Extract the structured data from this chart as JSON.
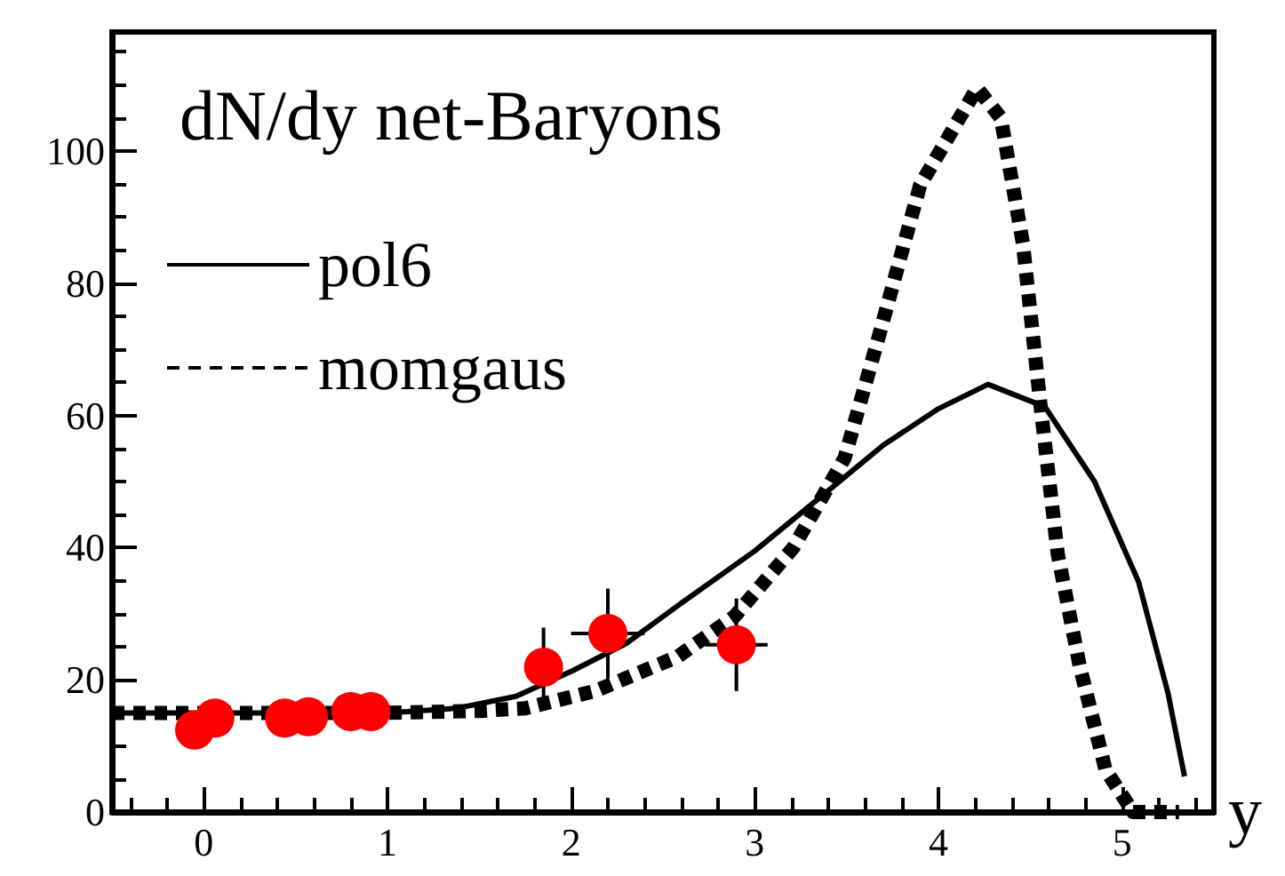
{
  "chart_data": {
    "type": "line",
    "title": "dN/dy net-Baryons",
    "xlabel": "y",
    "xlim": [
      -0.5,
      5.5
    ],
    "ylim": [
      0,
      118
    ],
    "xticks": [
      0,
      1,
      2,
      3,
      4,
      5
    ],
    "yticks": [
      0,
      20,
      40,
      60,
      80,
      100
    ],
    "grid": false,
    "legend": "top left",
    "series": [
      {
        "name": "pol6",
        "color": "#000000",
        "line_style": "solid",
        "marker": "none",
        "x": [
          -0.5,
          0,
          1,
          1.38,
          1.7,
          2.01,
          2.3,
          2.58,
          3,
          3.36,
          3.7,
          4,
          4.27,
          4.58,
          4.85,
          5.09,
          5.25,
          5.34
        ],
        "values": [
          15,
          15,
          15,
          15.7,
          17.5,
          21.4,
          25.5,
          31.2,
          39.5,
          47.7,
          55.5,
          61,
          64.7,
          61.3,
          50,
          34.8,
          18,
          5.4
        ]
      },
      {
        "name": "momgaus",
        "color": "#000000",
        "line_style": "dotted",
        "marker": "none",
        "x": [
          -0.5,
          0,
          1,
          1.5,
          1.75,
          2.13,
          2.58,
          2.89,
          3.21,
          3.49,
          3.68,
          3.9,
          4.21,
          4.34,
          4.46,
          4.56,
          4.65,
          4.77,
          4.91,
          5.06,
          5.31
        ],
        "values": [
          15,
          15,
          15,
          15.3,
          15.7,
          18.3,
          23.5,
          29.6,
          40,
          53.6,
          72.4,
          94.8,
          109.5,
          105,
          86,
          60.5,
          39,
          22,
          6.4,
          0,
          0
        ]
      },
      {
        "type": "scatter",
        "color": "#ff0000",
        "marker": "circle",
        "x": [
          -0.05,
          0.06,
          0.44,
          0.57,
          0.8,
          0.91,
          1.85,
          2.2,
          2.9
        ],
        "values": [
          12.4,
          14.2,
          14.2,
          14.4,
          15.2,
          15.2,
          21.9,
          27,
          25.3
        ],
        "errors": [
          null,
          null,
          null,
          null,
          null,
          null,
          6,
          6.8,
          7
        ],
        "xerrors": [
          null,
          null,
          null,
          null,
          null,
          null,
          null,
          0.2,
          0.17
        ]
      }
    ]
  }
}
